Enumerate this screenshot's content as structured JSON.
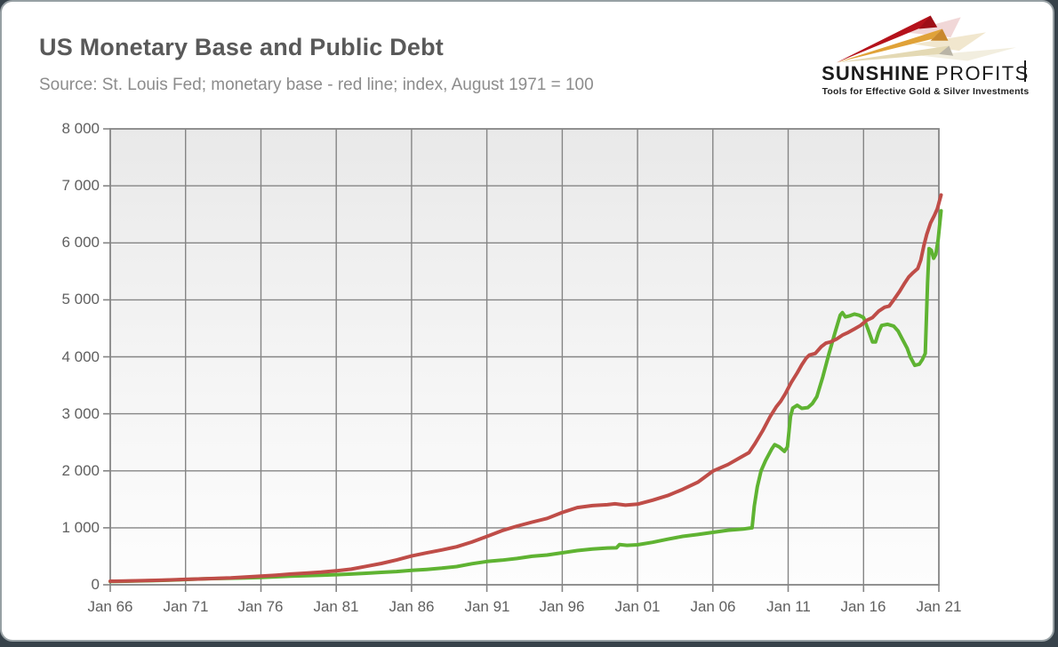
{
  "header": {
    "title": "US Monetary Base and Public Debt",
    "subtitle": "Source: St. Louis Fed; monetary base - red line; index, August 1971 = 100"
  },
  "logo": {
    "brand_bold": "SUNSHINE",
    "brand_light": "PROFITS",
    "tagline": "Tools for Effective Gold & Silver Investments",
    "arrow_colors": {
      "red": "#b5121b",
      "gold": "#e0a238",
      "beige": "#e4d9b4"
    }
  },
  "chart_data": {
    "type": "line",
    "title": "US Monetary Base and Public Debt",
    "xlabel": "",
    "ylabel": "",
    "grid": true,
    "legend_position": "none (series identified by color in subtitle)",
    "index_note": "index, August 1971 = 100",
    "ylim": [
      0,
      8000
    ],
    "y_ticks": [
      0,
      1000,
      2000,
      3000,
      4000,
      5000,
      6000,
      7000,
      8000
    ],
    "y_tick_labels": [
      "0",
      "1 000",
      "2 000",
      "3 000",
      "4 000",
      "5 000",
      "6 000",
      "7 000",
      "8 000"
    ],
    "x_range_years": [
      1966,
      2021
    ],
    "x_tick_years": [
      1966,
      1971,
      1976,
      1981,
      1986,
      1991,
      1996,
      2001,
      2006,
      2011,
      2016,
      2021
    ],
    "x_tick_labels": [
      "Jan 66",
      "Jan 71",
      "Jan 76",
      "Jan 81",
      "Jan 86",
      "Jan 91",
      "Jan 96",
      "Jan 01",
      "Jan 06",
      "Jan 11",
      "Jan 16",
      "Jan 21"
    ],
    "grid_color": "#858585",
    "series": [
      {
        "name": "Green line (step-jumps in 2008, 2011 and 2020; labeled public debt per source note)",
        "color": "#5fb332",
        "points": [
          [
            1966.0,
            58
          ],
          [
            1967.0,
            63
          ],
          [
            1968.0,
            68
          ],
          [
            1969.0,
            74
          ],
          [
            1970.0,
            81
          ],
          [
            1971.0,
            92
          ],
          [
            1971.6,
            100
          ],
          [
            1972.5,
            107
          ],
          [
            1974.0,
            116
          ],
          [
            1975.0,
            122
          ],
          [
            1976.0,
            130
          ],
          [
            1977.0,
            140
          ],
          [
            1978.0,
            152
          ],
          [
            1979.0,
            160
          ],
          [
            1980.0,
            167
          ],
          [
            1981.0,
            177
          ],
          [
            1982.0,
            188
          ],
          [
            1983.0,
            202
          ],
          [
            1984.0,
            218
          ],
          [
            1985.0,
            233
          ],
          [
            1986.0,
            252
          ],
          [
            1987.0,
            270
          ],
          [
            1988.0,
            292
          ],
          [
            1989.0,
            320
          ],
          [
            1990.0,
            370
          ],
          [
            1991.0,
            408
          ],
          [
            1992.0,
            432
          ],
          [
            1993.0,
            462
          ],
          [
            1994.0,
            500
          ],
          [
            1995.0,
            522
          ],
          [
            1996.0,
            562
          ],
          [
            1997.0,
            600
          ],
          [
            1998.0,
            628
          ],
          [
            1999.0,
            645
          ],
          [
            1999.6,
            648
          ],
          [
            1999.8,
            705
          ],
          [
            2000.3,
            692
          ],
          [
            2001.0,
            702
          ],
          [
            2002.0,
            745
          ],
          [
            2003.0,
            800
          ],
          [
            2004.0,
            850
          ],
          [
            2005.0,
            882
          ],
          [
            2006.0,
            920
          ],
          [
            2007.0,
            958
          ],
          [
            2008.0,
            978
          ],
          [
            2008.6,
            1000
          ],
          [
            2008.75,
            1380
          ],
          [
            2008.95,
            1720
          ],
          [
            2009.2,
            2000
          ],
          [
            2009.5,
            2180
          ],
          [
            2009.9,
            2380
          ],
          [
            2010.1,
            2460
          ],
          [
            2010.4,
            2420
          ],
          [
            2010.75,
            2340
          ],
          [
            2010.95,
            2420
          ],
          [
            2011.15,
            2950
          ],
          [
            2011.3,
            3100
          ],
          [
            2011.6,
            3150
          ],
          [
            2011.9,
            3095
          ],
          [
            2012.3,
            3110
          ],
          [
            2012.6,
            3180
          ],
          [
            2012.9,
            3300
          ],
          [
            2013.3,
            3650
          ],
          [
            2013.7,
            4050
          ],
          [
            2014.1,
            4420
          ],
          [
            2014.45,
            4730
          ],
          [
            2014.6,
            4775
          ],
          [
            2014.8,
            4700
          ],
          [
            2015.1,
            4720
          ],
          [
            2015.4,
            4750
          ],
          [
            2015.7,
            4730
          ],
          [
            2016.0,
            4690
          ],
          [
            2016.3,
            4480
          ],
          [
            2016.6,
            4260
          ],
          [
            2016.8,
            4260
          ],
          [
            2017.0,
            4430
          ],
          [
            2017.2,
            4550
          ],
          [
            2017.6,
            4570
          ],
          [
            2018.0,
            4540
          ],
          [
            2018.3,
            4450
          ],
          [
            2018.6,
            4300
          ],
          [
            2018.9,
            4150
          ],
          [
            2019.1,
            4000
          ],
          [
            2019.4,
            3850
          ],
          [
            2019.7,
            3870
          ],
          [
            2019.9,
            3950
          ],
          [
            2020.1,
            4060
          ],
          [
            2020.25,
            5300
          ],
          [
            2020.35,
            5900
          ],
          [
            2020.5,
            5870
          ],
          [
            2020.65,
            5730
          ],
          [
            2020.8,
            5800
          ],
          [
            2020.95,
            6060
          ],
          [
            2021.15,
            6560
          ]
        ]
      },
      {
        "name": "Red line (smooth rise; labeled monetary base per source note)",
        "color": "#bf4d48",
        "points": [
          [
            1966.0,
            63
          ],
          [
            1967.0,
            67
          ],
          [
            1968.0,
            72
          ],
          [
            1969.0,
            78
          ],
          [
            1970.0,
            85
          ],
          [
            1971.0,
            95
          ],
          [
            1971.6,
            100
          ],
          [
            1972.5,
            108
          ],
          [
            1974.0,
            122
          ],
          [
            1975.0,
            138
          ],
          [
            1976.0,
            152
          ],
          [
            1977.0,
            168
          ],
          [
            1978.0,
            188
          ],
          [
            1979.0,
            205
          ],
          [
            1980.0,
            222
          ],
          [
            1981.0,
            245
          ],
          [
            1982.0,
            275
          ],
          [
            1983.0,
            325
          ],
          [
            1984.0,
            375
          ],
          [
            1985.0,
            435
          ],
          [
            1986.0,
            505
          ],
          [
            1987.0,
            560
          ],
          [
            1988.0,
            612
          ],
          [
            1989.0,
            668
          ],
          [
            1990.0,
            750
          ],
          [
            1991.0,
            848
          ],
          [
            1992.0,
            950
          ],
          [
            1993.0,
            1030
          ],
          [
            1994.0,
            1100
          ],
          [
            1995.0,
            1165
          ],
          [
            1996.0,
            1270
          ],
          [
            1997.0,
            1355
          ],
          [
            1998.0,
            1390
          ],
          [
            1999.0,
            1405
          ],
          [
            1999.5,
            1420
          ],
          [
            2000.2,
            1398
          ],
          [
            2001.0,
            1415
          ],
          [
            2002.0,
            1485
          ],
          [
            2003.0,
            1565
          ],
          [
            2004.0,
            1675
          ],
          [
            2005.0,
            1800
          ],
          [
            2006.0,
            1995
          ],
          [
            2007.0,
            2110
          ],
          [
            2007.8,
            2230
          ],
          [
            2008.4,
            2320
          ],
          [
            2008.8,
            2480
          ],
          [
            2009.3,
            2700
          ],
          [
            2009.8,
            2950
          ],
          [
            2010.2,
            3120
          ],
          [
            2010.5,
            3220
          ],
          [
            2010.8,
            3350
          ],
          [
            2011.2,
            3550
          ],
          [
            2011.6,
            3720
          ],
          [
            2011.9,
            3860
          ],
          [
            2012.2,
            3980
          ],
          [
            2012.4,
            4030
          ],
          [
            2012.8,
            4060
          ],
          [
            2013.2,
            4180
          ],
          [
            2013.5,
            4240
          ],
          [
            2013.8,
            4260
          ],
          [
            2014.2,
            4310
          ],
          [
            2014.6,
            4380
          ],
          [
            2015.0,
            4430
          ],
          [
            2015.4,
            4490
          ],
          [
            2015.8,
            4550
          ],
          [
            2016.2,
            4640
          ],
          [
            2016.6,
            4690
          ],
          [
            2017.0,
            4800
          ],
          [
            2017.4,
            4870
          ],
          [
            2017.7,
            4890
          ],
          [
            2018.0,
            5000
          ],
          [
            2018.4,
            5150
          ],
          [
            2018.7,
            5280
          ],
          [
            2019.0,
            5400
          ],
          [
            2019.3,
            5480
          ],
          [
            2019.6,
            5550
          ],
          [
            2019.8,
            5700
          ],
          [
            2020.0,
            5950
          ],
          [
            2020.2,
            6150
          ],
          [
            2020.45,
            6350
          ],
          [
            2020.7,
            6480
          ],
          [
            2020.9,
            6600
          ],
          [
            2021.15,
            6840
          ]
        ]
      }
    ]
  }
}
